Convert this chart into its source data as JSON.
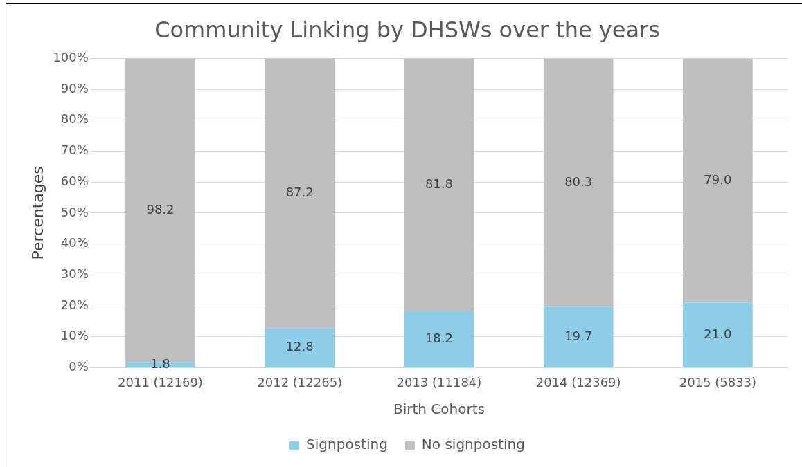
{
  "chart_data": {
    "type": "bar",
    "title": "Community Linking by DHSWs over the years",
    "xlabel": "Birth Cohorts",
    "ylabel": "Percentages",
    "categories": [
      "2011 (12169)",
      "2012 (12265)",
      "2013 (11184)",
      "2014 (12369)",
      "2015 (5833)"
    ],
    "stacked": true,
    "series": [
      {
        "name": "Signposting",
        "color": "#8ecde8",
        "values": [
          1.8,
          12.8,
          18.2,
          19.7,
          21.0
        ],
        "value_labels": [
          "1.8",
          "12.8",
          "18.2",
          "19.7",
          "21.0"
        ]
      },
      {
        "name": "No signposting",
        "color": "#bfbfbf",
        "values": [
          98.2,
          87.2,
          81.8,
          80.3,
          79.0
        ],
        "value_labels": [
          "98.2",
          "87.2",
          "81.8",
          "80.3",
          "79.0"
        ]
      }
    ],
    "ylim": [
      0,
      100
    ],
    "yticks": [
      {
        "value": 0,
        "label": "0%"
      },
      {
        "value": 10,
        "label": "10%"
      },
      {
        "value": 20,
        "label": "20%"
      },
      {
        "value": 30,
        "label": "30%"
      },
      {
        "value": 40,
        "label": "40%"
      },
      {
        "value": 50,
        "label": "50%"
      },
      {
        "value": 60,
        "label": "60%"
      },
      {
        "value": 70,
        "label": "70%"
      },
      {
        "value": 80,
        "label": "80%"
      },
      {
        "value": 90,
        "label": "90%"
      },
      {
        "value": 100,
        "label": "100%"
      }
    ],
    "grid": "y",
    "legend": "bottom"
  }
}
